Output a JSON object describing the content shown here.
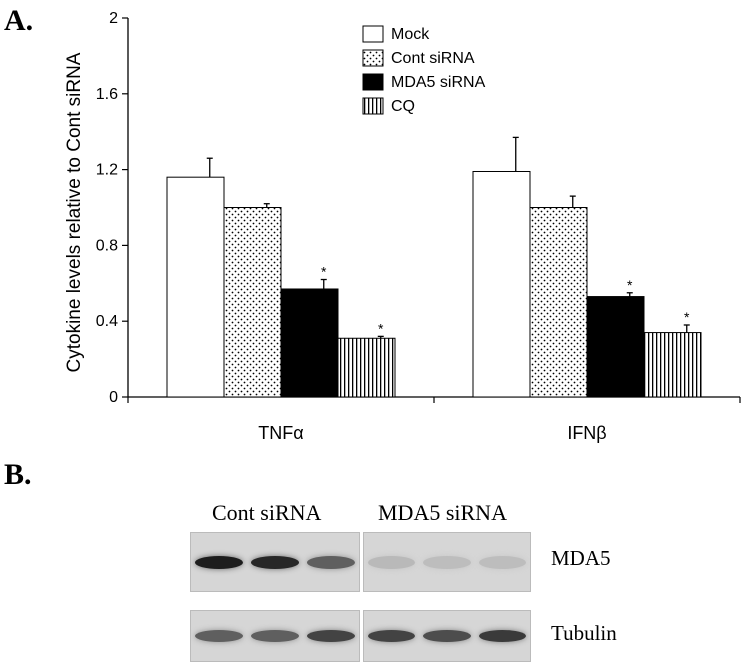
{
  "panel_a_label": "A.",
  "panel_b_label": "B.",
  "chart_data": {
    "type": "bar",
    "categories": [
      "TNFα",
      "IFNβ"
    ],
    "ylabel": "Cytokine levels relative to Cont siRNA",
    "xlabel": "",
    "ylim": [
      0,
      2
    ],
    "yticks": [
      "0",
      "0.4",
      "0.8",
      "1.2",
      "1.6",
      "2"
    ],
    "legend_position": "top-center",
    "series": [
      {
        "name": "Mock",
        "values": [
          1.16,
          1.19
        ],
        "errors": [
          0.1,
          0.18
        ],
        "significant": [
          false,
          false
        ],
        "pattern": "white"
      },
      {
        "name": "Cont siRNA",
        "values": [
          1.0,
          1.0
        ],
        "errors": [
          0.02,
          0.06
        ],
        "significant": [
          false,
          false
        ],
        "pattern": "dots"
      },
      {
        "name": "MDA5 siRNA",
        "values": [
          0.57,
          0.53
        ],
        "errors": [
          0.05,
          0.02
        ],
        "significant": [
          true,
          true
        ],
        "pattern": "black"
      },
      {
        "name": "CQ",
        "values": [
          0.31,
          0.34
        ],
        "errors": [
          0.01,
          0.04
        ],
        "significant": [
          true,
          true
        ],
        "pattern": "vlines"
      }
    ],
    "significance_marker": "*"
  },
  "blot": {
    "group_labels": [
      "Cont siRNA",
      "MDA5 siRNA"
    ],
    "rows": [
      {
        "label": "MDA5",
        "band_intensity": [
          0.9,
          0.85,
          0.55,
          0.08,
          0.06,
          0.06
        ]
      },
      {
        "label": "Tubulin",
        "band_intensity": [
          0.55,
          0.55,
          0.7,
          0.7,
          0.65,
          0.75
        ]
      }
    ]
  }
}
